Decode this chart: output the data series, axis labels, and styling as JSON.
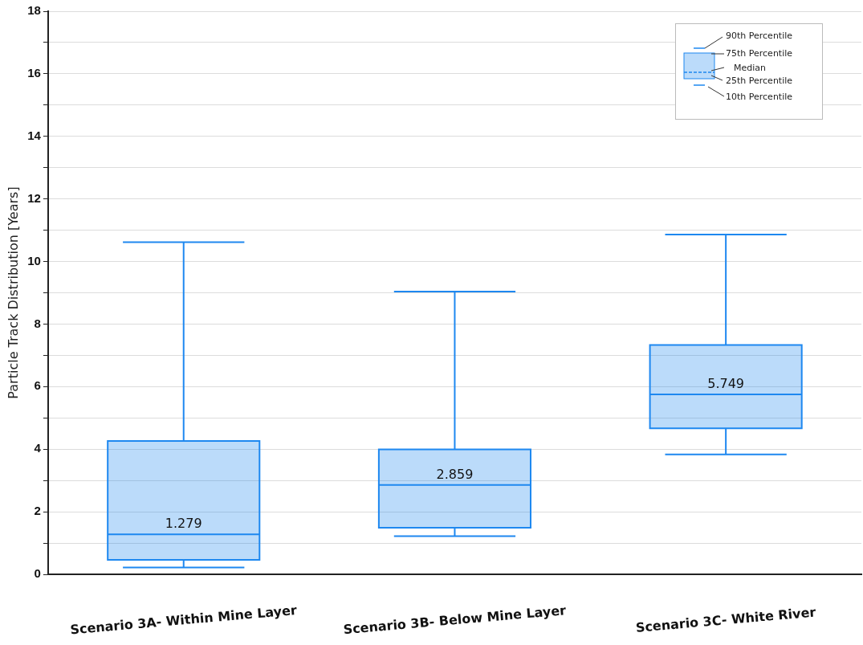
{
  "chart_data": {
    "type": "box",
    "ylabel": "Particle Track Distribution [Years]",
    "categories": [
      "Scenario 3A- Within Mine Layer",
      "Scenario 3B- Below Mine Layer",
      "Scenario 3C- White River"
    ],
    "boxes": [
      {
        "low": 0.22,
        "q1": 0.46,
        "median": 1.279,
        "q3": 4.26,
        "high": 10.62
      },
      {
        "low": 1.22,
        "q1": 1.49,
        "median": 2.859,
        "q3": 3.99,
        "high": 9.04
      },
      {
        "low": 3.83,
        "q1": 4.67,
        "median": 5.749,
        "q3": 7.33,
        "high": 10.86
      }
    ],
    "color": "#1e88f0",
    "value_labels": [
      "1.279",
      "2.859",
      "5.749"
    ],
    "ylim": [
      0,
      18
    ],
    "yticks": [
      0,
      {
        "value": 1,
        "label": null
      },
      2,
      {
        "value": 3,
        "label": null
      },
      4,
      {
        "value": 5,
        "label": null
      },
      6,
      {
        "value": 7,
        "label": null
      },
      8,
      {
        "value": 9,
        "label": null
      },
      10,
      {
        "value": 11,
        "label": null
      },
      12,
      {
        "value": 13,
        "label": null
      },
      14,
      {
        "value": 15,
        "label": null
      },
      16,
      {
        "value": 17,
        "label": null
      },
      18
    ],
    "grid": "y",
    "annotations": [
      "90th Percentile",
      "75th Percentile",
      "Median",
      "25th Percentile",
      "10th Percentile"
    ]
  }
}
